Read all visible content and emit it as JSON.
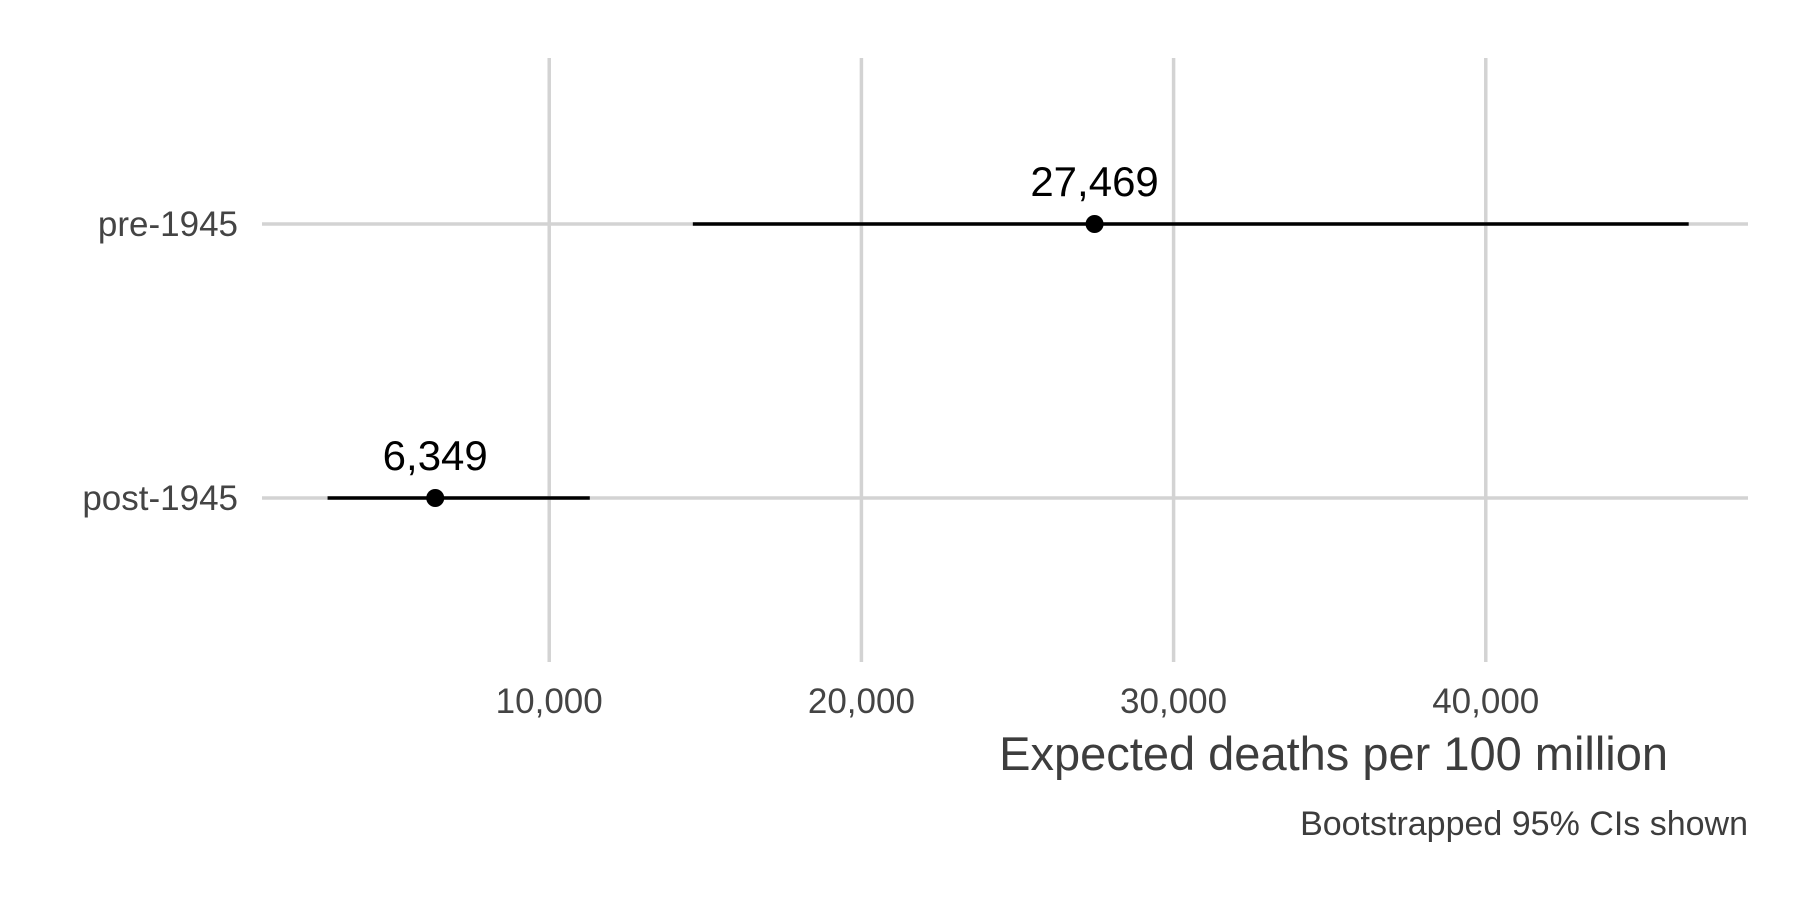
{
  "chart_data": {
    "type": "scatter",
    "subtype": "point-range",
    "categories": [
      "pre-1945",
      "post-1945"
    ],
    "series": [
      {
        "points": [
          {
            "category": "pre-1945",
            "value": 27469,
            "low": 14600,
            "high": 46500,
            "label": "27,469"
          },
          {
            "category": "post-1945",
            "value": 6349,
            "low": 2900,
            "high": 11300,
            "label": "6,349"
          }
        ]
      }
    ],
    "xlabel": "Expected deaths per 100 million",
    "caption": "Bootstrapped 95% CIs shown",
    "xlim": [
      800,
      48400
    ],
    "x_ticks": [
      10000,
      20000,
      30000,
      40000
    ],
    "x_tick_labels": [
      "10,000",
      "20,000",
      "30,000",
      "40,000"
    ],
    "grid": true,
    "legend": "none"
  },
  "colors": {
    "point": "#000000",
    "interval": "#000000",
    "grid": "#d3d3d3",
    "text": "#444444"
  }
}
